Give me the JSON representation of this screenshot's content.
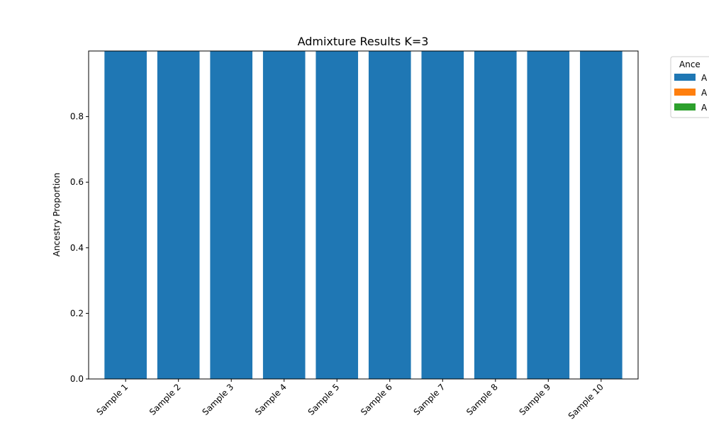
{
  "chart_data": {
    "type": "bar",
    "stacked": true,
    "title": "Admixture Results K=3",
    "xlabel": "",
    "ylabel": "Ancestry Proportion",
    "categories": [
      "Sample 1",
      "Sample 2",
      "Sample 3",
      "Sample 4",
      "Sample 5",
      "Sample 6",
      "Sample 7",
      "Sample 8",
      "Sample 9",
      "Sample 10"
    ],
    "series": [
      {
        "name": "A",
        "color": "#1f77b4",
        "values": [
          1,
          1,
          1,
          1,
          1,
          1,
          1,
          1,
          1,
          1
        ]
      },
      {
        "name": "A",
        "color": "#ff7f0e",
        "values": [
          0,
          0,
          0,
          0,
          0,
          0,
          0,
          0,
          0,
          0
        ]
      },
      {
        "name": "A",
        "color": "#2ca02c",
        "values": [
          0,
          0,
          0,
          0,
          0,
          0,
          0,
          0,
          0,
          0
        ]
      }
    ],
    "ylim": [
      0,
      1
    ],
    "yticks": [
      "0.0",
      "0.2",
      "0.4",
      "0.6",
      "0.8"
    ],
    "grid": false,
    "legend": {
      "title": "Ance",
      "placement": "outside-top-right"
    }
  }
}
